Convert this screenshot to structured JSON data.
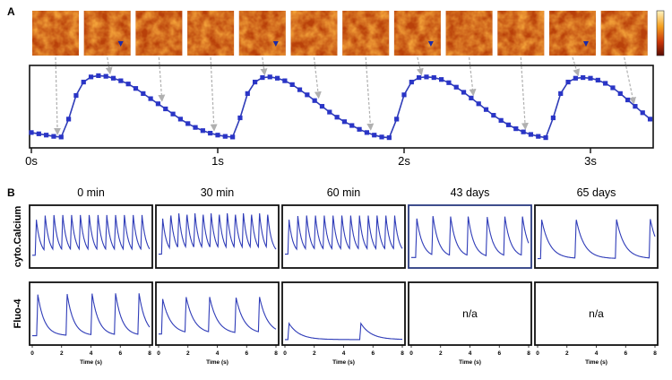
{
  "panels": {
    "a_label": "A",
    "b_label": "B"
  },
  "colors": {
    "trace": "#2f3cb8",
    "marker": "#2a35c6",
    "arrow": "#b0b0b0",
    "frame": "#111111",
    "highlight_frame": "#2a3a80"
  },
  "chart_data": [
    {
      "type": "line",
      "panel": "A",
      "x_ticks": [
        "0s",
        "1s",
        "2s",
        "3s"
      ],
      "xlim": [
        0,
        3.35
      ],
      "ylim": [
        0,
        1.15
      ],
      "grid": false,
      "frame_count": 12,
      "frame_times": [
        0.14,
        0.42,
        0.7,
        0.98,
        1.25,
        1.54,
        1.82,
        2.09,
        2.37,
        2.65,
        2.93,
        3.23
      ],
      "series": [
        {
          "x": [
            0.0,
            0.04,
            0.08,
            0.12,
            0.16,
            0.2,
            0.24,
            0.28,
            0.32,
            0.36,
            0.4,
            0.44,
            0.48,
            0.52,
            0.56,
            0.6,
            0.64,
            0.68,
            0.72,
            0.76,
            0.8,
            0.84,
            0.88,
            0.92,
            0.96,
            1.0,
            1.04,
            1.08,
            1.12,
            1.16,
            1.2,
            1.24,
            1.28,
            1.32,
            1.36,
            1.4,
            1.44,
            1.48,
            1.52,
            1.56,
            1.6,
            1.64,
            1.68,
            1.72,
            1.76,
            1.8,
            1.84,
            1.88,
            1.92,
            1.96,
            2.0,
            2.04,
            2.08,
            2.12,
            2.16,
            2.2,
            2.24,
            2.28,
            2.32,
            2.36,
            2.4,
            2.44,
            2.48,
            2.52,
            2.56,
            2.6,
            2.64,
            2.68,
            2.72,
            2.76,
            2.8,
            2.84,
            2.88,
            2.92,
            2.96,
            3.0,
            3.04,
            3.08,
            3.12,
            3.16,
            3.2,
            3.24,
            3.28,
            3.32
          ],
          "y": [
            0.17,
            0.15,
            0.13,
            0.11,
            0.1,
            0.38,
            0.75,
            0.96,
            1.04,
            1.06,
            1.05,
            1.02,
            0.98,
            0.93,
            0.86,
            0.78,
            0.7,
            0.62,
            0.54,
            0.46,
            0.38,
            0.31,
            0.25,
            0.2,
            0.16,
            0.13,
            0.11,
            0.1,
            0.4,
            0.78,
            0.96,
            1.03,
            1.04,
            1.02,
            0.98,
            0.92,
            0.84,
            0.76,
            0.67,
            0.58,
            0.49,
            0.41,
            0.34,
            0.28,
            0.22,
            0.17,
            0.13,
            0.1,
            0.09,
            0.38,
            0.76,
            0.96,
            1.03,
            1.04,
            1.03,
            1.0,
            0.95,
            0.88,
            0.8,
            0.71,
            0.62,
            0.53,
            0.44,
            0.36,
            0.29,
            0.23,
            0.18,
            0.14,
            0.11,
            0.09,
            0.4,
            0.78,
            0.96,
            1.02,
            1.03,
            1.02,
            0.99,
            0.94,
            0.87,
            0.78,
            0.68,
            0.58,
            0.48,
            0.38
          ]
        }
      ]
    },
    {
      "type": "line",
      "panel": "B",
      "columns": [
        "0 min",
        "30 min",
        "60 min",
        "43 days",
        "65 days"
      ],
      "rows": [
        "cyto.Calcium",
        "Fluo-4"
      ],
      "x_ticks": [
        "0",
        "2",
        "4",
        "6",
        "8"
      ],
      "xlabel": "Time (s)",
      "xlim": [
        0,
        8
      ],
      "na_text": "n/a",
      "traces": [
        {
          "row": "cyto.Calcium",
          "column": "0 min",
          "beats": [
            0.2,
            0.8,
            1.4,
            2.0,
            2.6,
            3.2,
            3.8,
            4.4,
            5.0,
            5.6,
            6.2,
            6.8,
            7.4
          ],
          "peak": 0.82,
          "baseline": 0.18,
          "decay": 0.28
        },
        {
          "row": "cyto.Calcium",
          "column": "30 min",
          "beats": [
            0.2,
            0.75,
            1.3,
            1.85,
            2.4,
            2.95,
            3.5,
            4.05,
            4.6,
            5.15,
            5.7,
            6.25,
            6.8,
            7.35
          ],
          "peak": 0.84,
          "baseline": 0.2,
          "decay": 0.27
        },
        {
          "row": "cyto.Calcium",
          "column": "60 min",
          "beats": [
            0.2,
            0.8,
            1.4,
            2.0,
            2.6,
            3.2,
            3.8,
            4.4,
            5.0,
            5.6,
            6.2,
            6.8,
            7.4
          ],
          "peak": 0.82,
          "baseline": 0.2,
          "decay": 0.27
        },
        {
          "row": "cyto.Calcium",
          "column": "43 days",
          "beats": [
            0.3,
            1.4,
            2.6,
            3.8,
            5.1,
            6.3,
            7.5
          ],
          "peak": 0.84,
          "baseline": 0.14,
          "decay": 0.4
        },
        {
          "row": "cyto.Calcium",
          "column": "65 days",
          "beats": [
            0.2,
            2.55,
            5.3,
            7.6
          ],
          "peak": 0.82,
          "baseline": 0.12,
          "decay": 0.55
        },
        {
          "row": "Fluo-4",
          "column": "0 min",
          "beats": [
            0.3,
            2.3,
            4.0,
            5.6,
            7.2
          ],
          "peak": 0.86,
          "baseline": 0.12,
          "decay": 0.45
        },
        {
          "row": "Fluo-4",
          "column": "30 min",
          "beats": [
            0.2,
            1.8,
            3.4,
            5.2,
            6.8
          ],
          "peak": 0.78,
          "baseline": 0.15,
          "decay": 0.55
        },
        {
          "row": "Fluo-4",
          "column": "60 min",
          "beats": [
            0.2,
            5.1
          ],
          "peak": 0.34,
          "baseline": 0.05,
          "decay": 0.7
        }
      ]
    }
  ]
}
